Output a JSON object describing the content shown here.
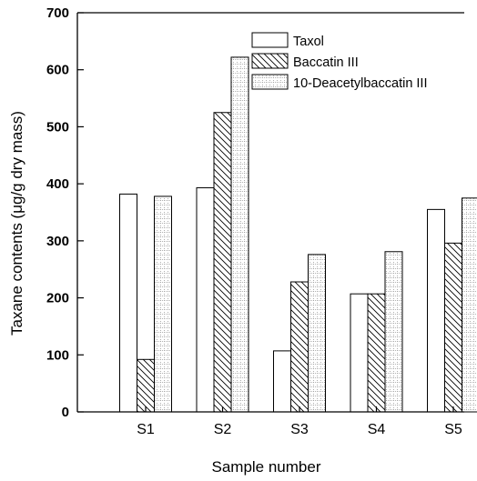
{
  "chart_data": {
    "type": "bar",
    "xlabel": "Sample number",
    "ylabel": "Taxane contents (μg/g dry mass)",
    "ylim": [
      0,
      700
    ],
    "yticks": [
      0,
      100,
      200,
      300,
      400,
      500,
      600,
      700
    ],
    "categories": [
      "S1",
      "S2",
      "S3",
      "S4",
      "S5"
    ],
    "series": [
      {
        "name": "Taxol",
        "values": [
          382,
          393,
          107,
          207,
          355
        ],
        "pattern": "blank"
      },
      {
        "name": "Baccatin III",
        "values": [
          92,
          525,
          228,
          207,
          296
        ],
        "pattern": "diagonal-hatch"
      },
      {
        "name": "10-Deacetylbaccatin III",
        "values": [
          378,
          622,
          276,
          281,
          375
        ],
        "pattern": "fine-dotted-grid"
      }
    ],
    "legend": "top-right",
    "grid": false
  }
}
